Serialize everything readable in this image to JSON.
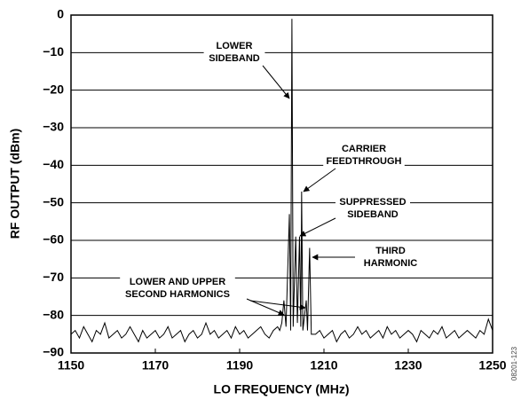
{
  "chart_data": {
    "type": "line",
    "x_label": "LO FREQUENCY (MHz)",
    "y_label": "RF OUTPUT (dBm)",
    "figure_id": "08201-123",
    "xlim": [
      1150,
      1250
    ],
    "xticks": [
      1150,
      1170,
      1190,
      1210,
      1230,
      1250
    ],
    "ylim": [
      -90,
      0
    ],
    "yticks": [
      0,
      {
        "value": -10,
        "label": "−10"
      },
      {
        "value": -20,
        "label": "−20"
      },
      {
        "value": -30,
        "label": "−30"
      },
      {
        "value": -40,
        "label": "−40"
      },
      {
        "value": -50,
        "label": "−50"
      },
      {
        "value": -60,
        "label": "−60"
      },
      {
        "value": -70,
        "label": "−70"
      },
      {
        "value": -80,
        "label": "−80"
      },
      {
        "value": -90,
        "label": "−90"
      }
    ],
    "grid": true,
    "annotations": [
      {
        "lines": [
          "LOWER",
          "SIDEBAND"
        ]
      },
      {
        "lines": [
          "CARRIER",
          "FEEDTHROUGH"
        ]
      },
      {
        "lines": [
          "SUPPRESSED",
          "SIDEBAND"
        ]
      },
      {
        "lines": [
          "THIRD",
          "HARMONIC"
        ]
      },
      {
        "lines": [
          "LOWER AND UPPER",
          "SECOND HARMONICS"
        ]
      }
    ],
    "series": [
      {
        "color": "#000000",
        "x": [
          1150,
          1151,
          1152,
          1153,
          1154,
          1155,
          1156,
          1157,
          1158,
          1159,
          1160,
          1161,
          1162,
          1163,
          1164,
          1165,
          1166,
          1167,
          1168,
          1169,
          1170,
          1171,
          1172,
          1173,
          1174,
          1175,
          1176,
          1177,
          1178,
          1179,
          1180,
          1181,
          1182,
          1183,
          1184,
          1185,
          1186,
          1187,
          1188,
          1189,
          1190,
          1191,
          1192,
          1193,
          1194,
          1195,
          1196,
          1197,
          1198,
          1199,
          1199.5,
          1200,
          1200.5,
          1201,
          1201.8,
          1202.1,
          1202.4,
          1202.7,
          1203.3,
          1203.7,
          1204.2,
          1204.5,
          1204.7,
          1205,
          1205.8,
          1206.1,
          1206.6,
          1207,
          1208,
          1209,
          1210,
          1211,
          1212,
          1213,
          1214,
          1215,
          1216,
          1217,
          1218,
          1219,
          1220,
          1221,
          1222,
          1223,
          1224,
          1225,
          1226,
          1227,
          1228,
          1229,
          1230,
          1231,
          1232,
          1233,
          1234,
          1235,
          1236,
          1237,
          1238,
          1239,
          1240,
          1241,
          1242,
          1243,
          1244,
          1245,
          1246,
          1247,
          1248,
          1249,
          1250
        ],
        "values": [
          -85,
          -84,
          -86,
          -83,
          -85,
          -87,
          -84,
          -85,
          -82,
          -86,
          -85,
          -84,
          -86,
          -85,
          -83,
          -85,
          -87,
          -84,
          -86,
          -85,
          -84,
          -86,
          -85,
          -83,
          -86,
          -85,
          -84,
          -87,
          -85,
          -84,
          -86,
          -85,
          -82,
          -85,
          -84,
          -86,
          -85,
          -84,
          -86,
          -83,
          -85,
          -84,
          -86,
          -85,
          -84,
          -83,
          -85,
          -86,
          -84,
          -83,
          -84,
          -82,
          -76,
          -83,
          -53,
          -84,
          -1,
          -83,
          -59,
          -82,
          -59,
          -83,
          -47,
          -84,
          -76,
          -84,
          -62,
          -85,
          -85,
          -84,
          -86,
          -85,
          -84,
          -87,
          -85,
          -84,
          -86,
          -85,
          -83,
          -85,
          -84,
          -86,
          -85,
          -84,
          -86,
          -83,
          -85,
          -84,
          -86,
          -85,
          -84,
          -85,
          -87,
          -84,
          -85,
          -86,
          -84,
          -85,
          -83,
          -86,
          -85,
          -84,
          -86,
          -85,
          -84,
          -85,
          -86,
          -84,
          -85,
          -81,
          -84
        ]
      }
    ]
  }
}
